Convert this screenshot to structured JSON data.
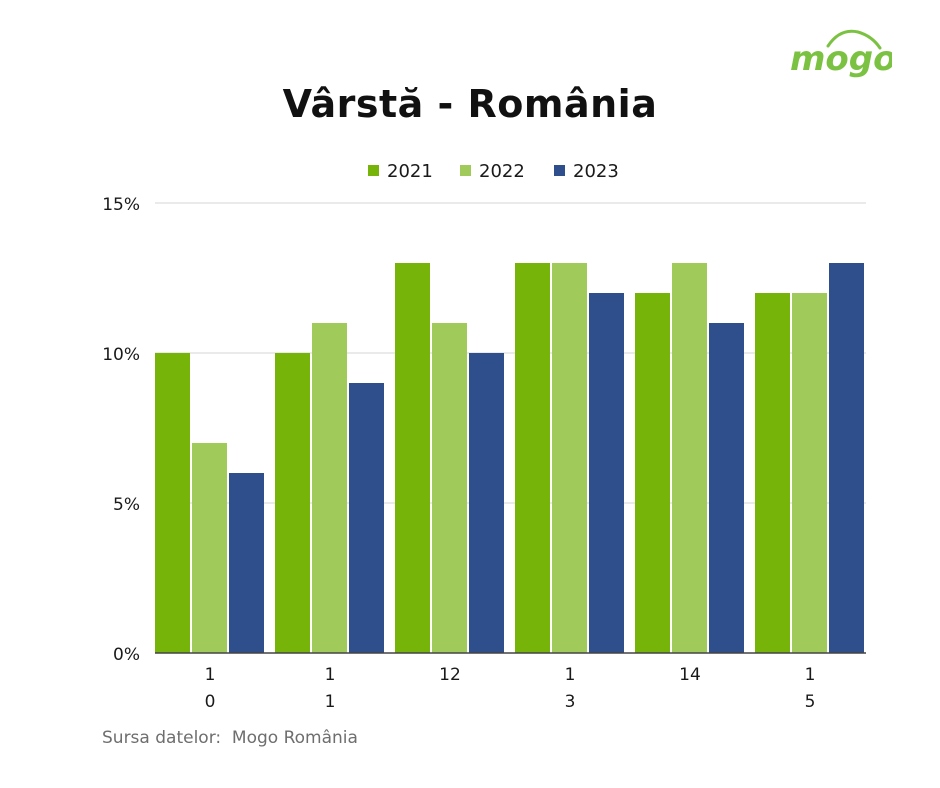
{
  "header": {
    "title": "Vârstă - România",
    "logo_text": "mogo"
  },
  "footer": {
    "source": "Sursa datelor:  Mogo România"
  },
  "colors": {
    "brand_green": "#7cc242",
    "series_2021": "#76b40a",
    "series_2022": "#a0ca5a",
    "series_2023": "#2f4f8c",
    "gridline": "#d4d4d4"
  },
  "chart_data": {
    "type": "bar",
    "title": "Vârstă - România",
    "xlabel": "",
    "ylabel": "",
    "categories": [
      [
        "1",
        "0"
      ],
      [
        "1",
        "1"
      ],
      [
        "12"
      ],
      [
        "1",
        "3"
      ],
      [
        "14"
      ],
      [
        "1",
        "5"
      ]
    ],
    "series": [
      {
        "name": "2021",
        "values": [
          10,
          10,
          13,
          13,
          12,
          12
        ]
      },
      {
        "name": "2022",
        "values": [
          7,
          11,
          11,
          13,
          13,
          12
        ]
      },
      {
        "name": "2023",
        "values": [
          6,
          9,
          10,
          12,
          11,
          13
        ]
      }
    ],
    "ylim": [
      0,
      15
    ],
    "yticks": [
      "0%",
      "5%",
      "10%",
      "15%"
    ],
    "grid": true,
    "legend_position": "top-center"
  }
}
